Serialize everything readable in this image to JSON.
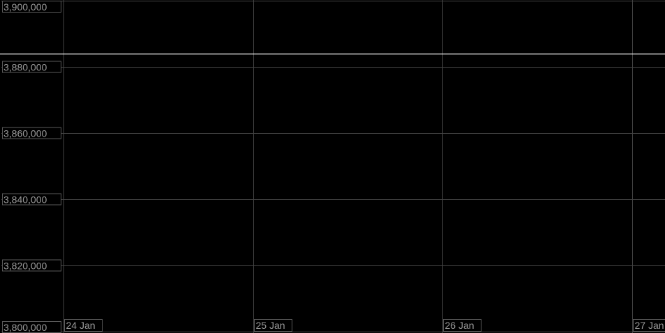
{
  "chart_data": {
    "type": "line",
    "title": "",
    "xlabel": "",
    "ylabel": "",
    "ylim": [
      3800000,
      3900000
    ],
    "yticks": [
      3900000,
      3880000,
      3860000,
      3840000,
      3820000,
      3800000
    ],
    "ytick_labels": [
      "3,900,000",
      "3,880,000",
      "3,860,000",
      "3,840,000",
      "3,820,000",
      "3,800,000"
    ],
    "xticks": [
      "24 Jan",
      "25 Jan",
      "26 Jan",
      "27 Jan"
    ],
    "grid": true,
    "series": [
      {
        "x": [
          "24 Jan",
          "27 Jan"
        ],
        "values": [
          3884000,
          3884000
        ],
        "color": "#ffffff"
      }
    ],
    "colors": {
      "background": "#000000",
      "grid": "#444444",
      "label": "#9a9a9a",
      "line": "#ffffff"
    }
  }
}
